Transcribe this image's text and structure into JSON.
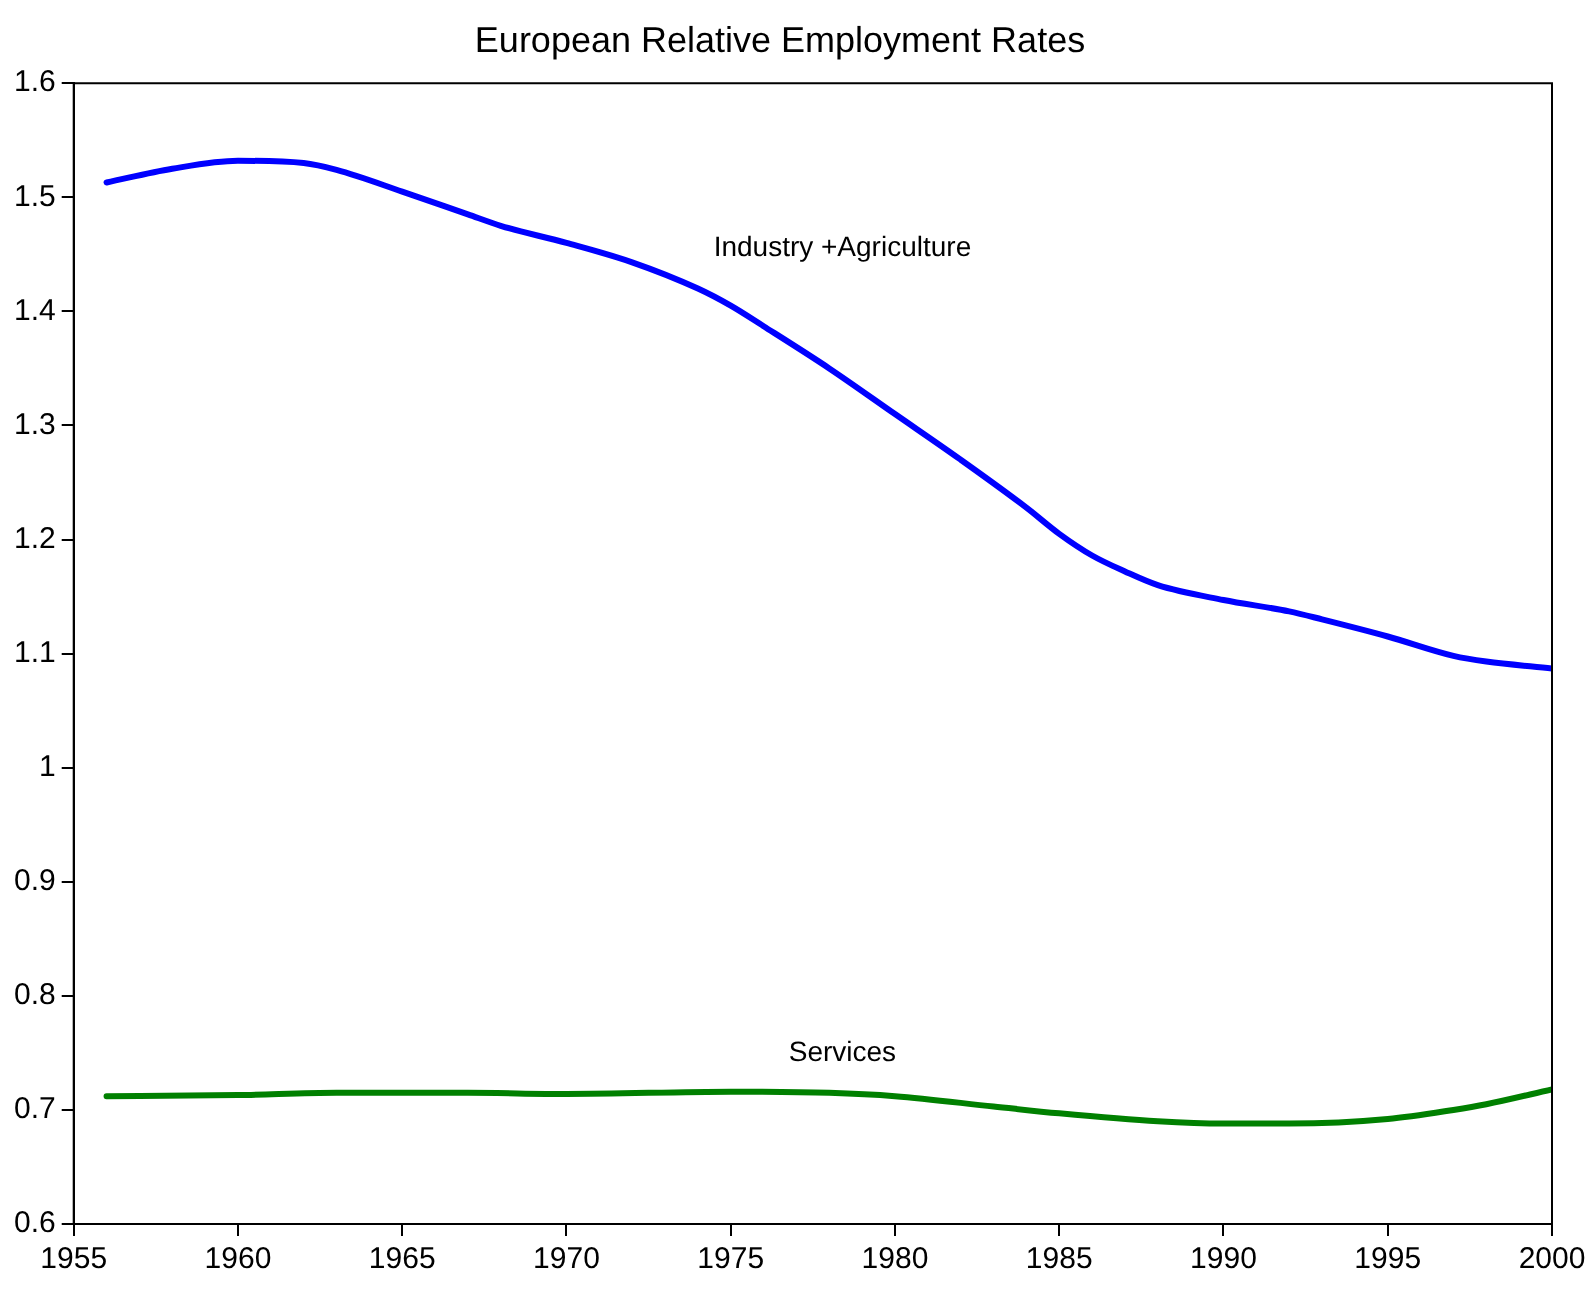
{
  "chart_data": {
    "type": "line",
    "title": "European Relative Employment Rates",
    "xlim": [
      1955,
      2000
    ],
    "xticks": [
      1955,
      1960,
      1965,
      1970,
      1975,
      1980,
      1985,
      1990,
      1995,
      2000
    ],
    "ylim": [
      0.6,
      1.6
    ],
    "yticks": [
      0.6,
      0.7,
      0.8,
      0.9,
      1,
      1.1,
      1.2,
      1.3,
      1.4,
      1.5,
      1.6
    ],
    "grid": false,
    "legend": false,
    "marker": "none",
    "line_style": "solid",
    "series": [
      {
        "name": "Industry +Agriculture",
        "color": "#0000ff",
        "x": [
          1956,
          1958,
          1960,
          1962,
          1963,
          1965,
          1967,
          1968,
          1970,
          1972,
          1974,
          1975,
          1976,
          1978,
          1980,
          1982,
          1984,
          1985,
          1986,
          1987,
          1988,
          1990,
          1992,
          1993,
          1995,
          1997,
          1998,
          2000
        ],
        "values": [
          1.513,
          1.525,
          1.532,
          1.53,
          1.524,
          1.505,
          1.485,
          1.475,
          1.46,
          1.443,
          1.42,
          1.405,
          1.387,
          1.35,
          1.31,
          1.27,
          1.228,
          1.205,
          1.186,
          1.172,
          1.16,
          1.147,
          1.137,
          1.13,
          1.115,
          1.098,
          1.093,
          1.087
        ]
      },
      {
        "name": "Services",
        "color": "#008000",
        "x": [
          1956,
          1960,
          1963,
          1967,
          1970,
          1975,
          1978,
          1980,
          1983,
          1985,
          1988,
          1990,
          1992,
          1995,
          1997,
          1998,
          2000
        ],
        "values": [
          0.712,
          0.713,
          0.715,
          0.715,
          0.714,
          0.716,
          0.715,
          0.712,
          0.703,
          0.697,
          0.69,
          0.688,
          0.688,
          0.692,
          0.7,
          0.705,
          0.718
        ]
      }
    ]
  }
}
